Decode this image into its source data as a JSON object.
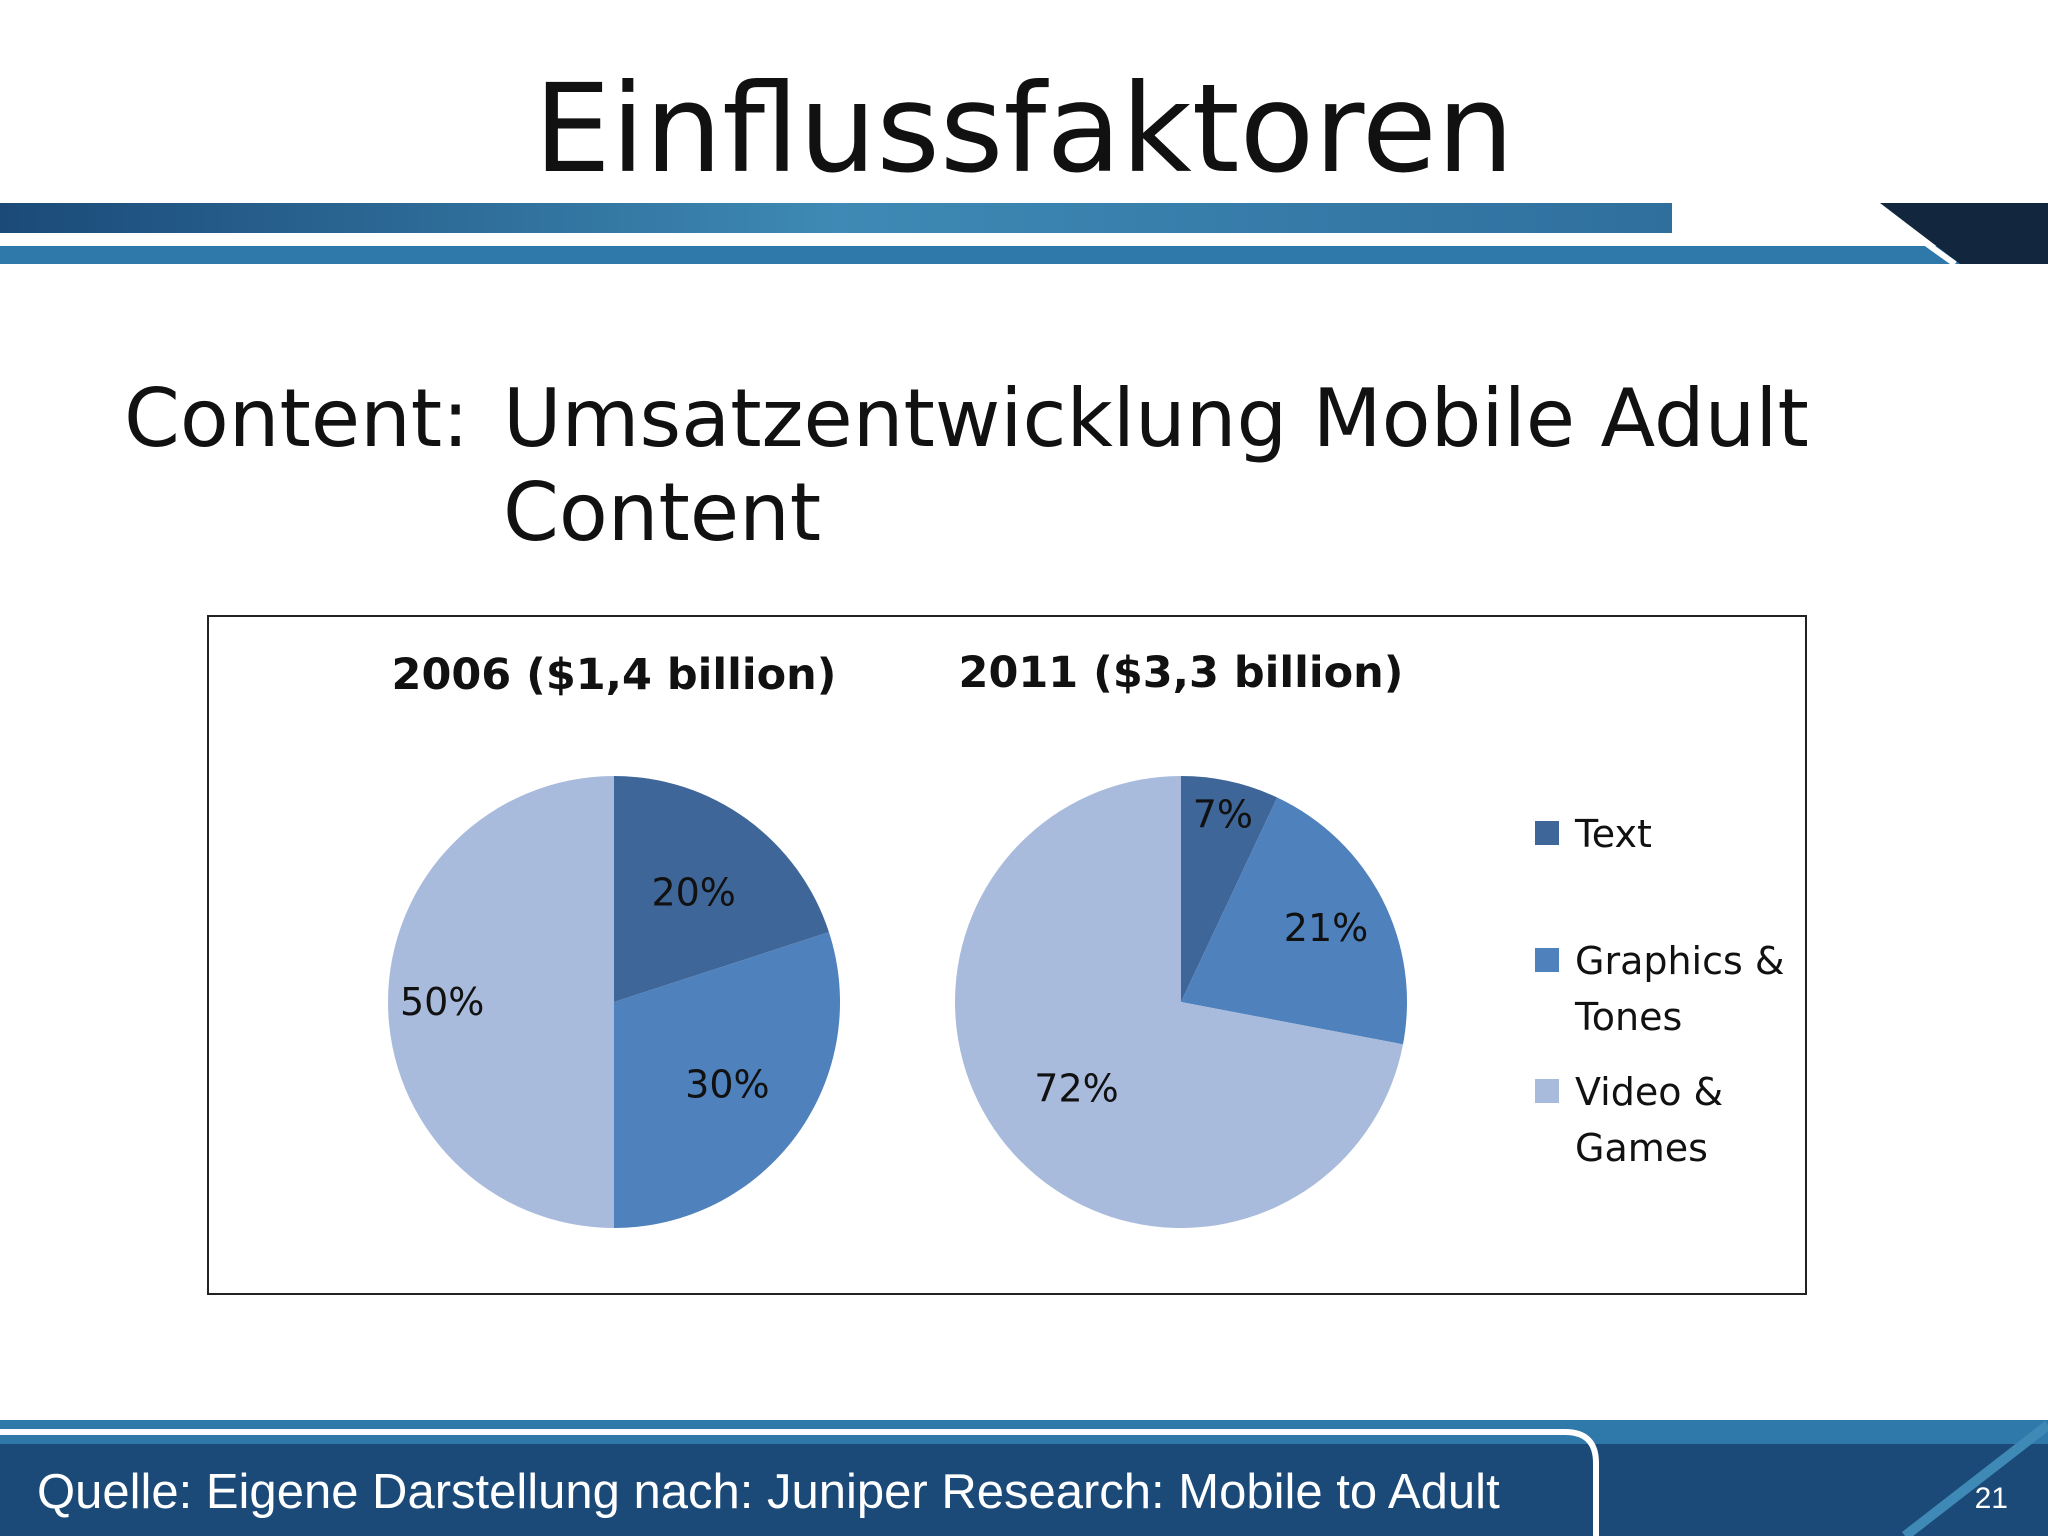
{
  "slide": {
    "title": "Einflussfaktoren",
    "subtitle_label": "Content:",
    "subtitle_text": "Umsatzentwicklung Mobile Adult Content",
    "footer": "Quelle: Eigene Darstellung nach: Juniper Research: Mobile to Adult",
    "page_number": "21"
  },
  "colors": {
    "text": "#3E6699",
    "graphics_tones": "#4F81BD",
    "video_games": "#A9BBDC",
    "band_dark": "#1B4A78",
    "band_light": "#3E89B5"
  },
  "chart_data": [
    {
      "type": "pie",
      "title": "2006 ($1,4 billion)",
      "slices": [
        {
          "name": "Text",
          "value": 20,
          "label": "20%"
        },
        {
          "name": "Graphics & Tones",
          "value": 30,
          "label": "30%"
        },
        {
          "name": "Video & Games",
          "value": 50,
          "label": "50%"
        }
      ]
    },
    {
      "type": "pie",
      "title": "2011 ($3,3 billion)",
      "slices": [
        {
          "name": "Text",
          "value": 7,
          "label": "7%"
        },
        {
          "name": "Graphics & Tones",
          "value": 21,
          "label": "21%"
        },
        {
          "name": "Video & Games",
          "value": 72,
          "label": "72%"
        }
      ]
    }
  ],
  "legend": {
    "placement": "right",
    "items": [
      {
        "lines": [
          "Text"
        ]
      },
      {
        "lines": [
          "Graphics &",
          "Tones"
        ]
      },
      {
        "lines": [
          "Video &",
          "Games"
        ]
      }
    ]
  }
}
